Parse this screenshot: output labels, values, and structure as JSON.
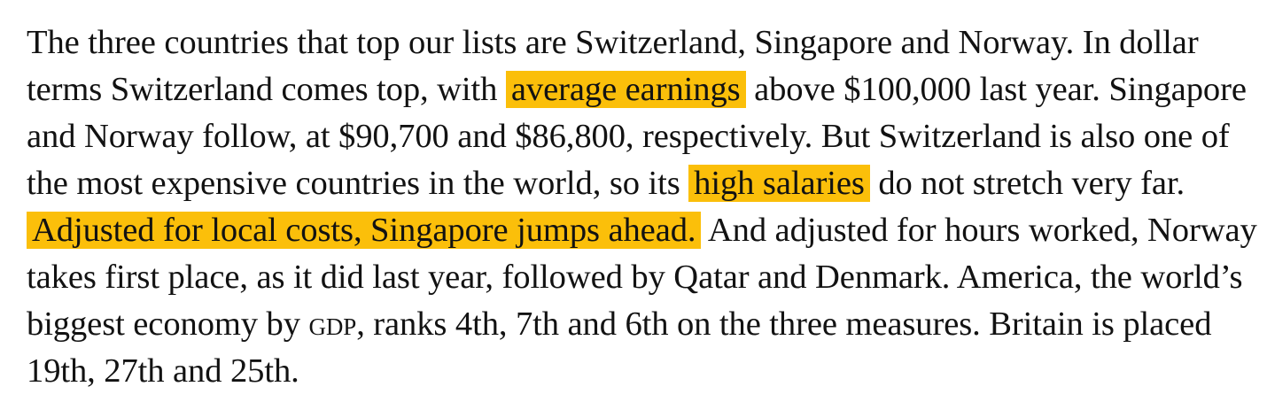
{
  "paragraph": {
    "s1": "The three countries that top our lists are Switzerland, Singapore and Norway. In dollar terms Switzerland comes top, with ",
    "h1": "average earnings",
    "s2": " above $100,000 last year. Singapore and Norway follow, at $90,700 and $86,800, respectively. But Switzerland is also one of the most expensive countries in the world, so its ",
    "h2": "high salaries",
    "s3": " do not stretch very far. ",
    "h3": "Adjusted for local costs, Singapore jumps ahead.",
    "s4": " And adjusted for hours worked, Norway takes first place, as it did last year, followed by Qatar and Denmark. America, the world’s biggest economy by ",
    "gdp": "GDP",
    "s5": ", ranks 4th, 7th and 6th on the three measures. Britain is placed 19th, 27th and 25th."
  },
  "colors": {
    "text": "#121212",
    "highlight": "#fbbf0a",
    "background": "#ffffff"
  }
}
